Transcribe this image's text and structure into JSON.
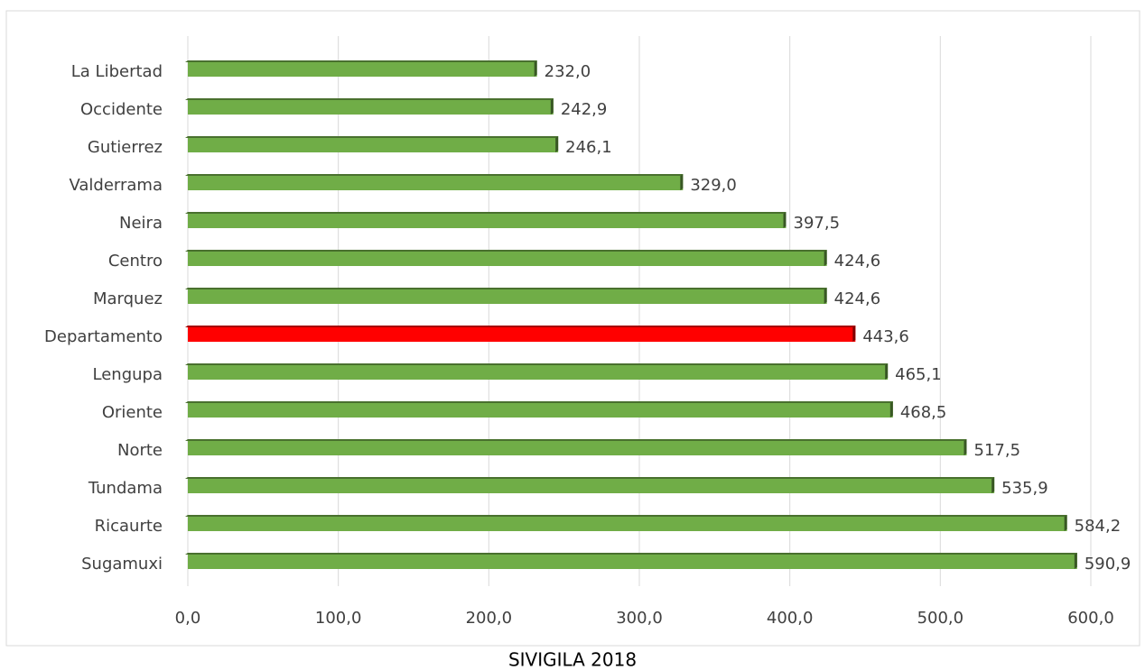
{
  "chart_data": {
    "type": "barh",
    "categories": [
      "La Libertad",
      "Occidente",
      "Gutierrez",
      "Valderrama",
      "Neira",
      "Centro",
      "Marquez",
      "Departamento",
      "Lengupa",
      "Oriente",
      "Norte",
      "Tundama",
      "Ricaurte",
      "Sugamuxi"
    ],
    "values": [
      232.0,
      242.9,
      246.1,
      329.0,
      397.5,
      424.6,
      424.6,
      443.6,
      465.1,
      468.5,
      517.5,
      535.9,
      584.2,
      590.9
    ],
    "value_labels": [
      "232,0",
      "242,9",
      "246,1",
      "329,0",
      "397,5",
      "424,6",
      "424,6",
      "443,6",
      "465,1",
      "468,5",
      "517,5",
      "535,9",
      "584,2",
      "590,9"
    ],
    "colors": [
      "#70ad47",
      "#70ad47",
      "#70ad47",
      "#70ad47",
      "#70ad47",
      "#70ad47",
      "#70ad47",
      "#ff0000",
      "#70ad47",
      "#70ad47",
      "#70ad47",
      "#70ad47",
      "#70ad47",
      "#70ad47"
    ],
    "xlim": [
      0,
      600
    ],
    "xticks": [
      {
        "value": 0,
        "label": "0,0"
      },
      {
        "value": 100,
        "label": "100,0"
      },
      {
        "value": 200,
        "label": "200,0"
      },
      {
        "value": 300,
        "label": "300,0"
      },
      {
        "value": 400,
        "label": "400,0"
      },
      {
        "value": 500,
        "label": "500,0"
      },
      {
        "value": 600,
        "label": "600,0"
      }
    ],
    "grid": true,
    "source": "SIVIGILA 2018"
  }
}
